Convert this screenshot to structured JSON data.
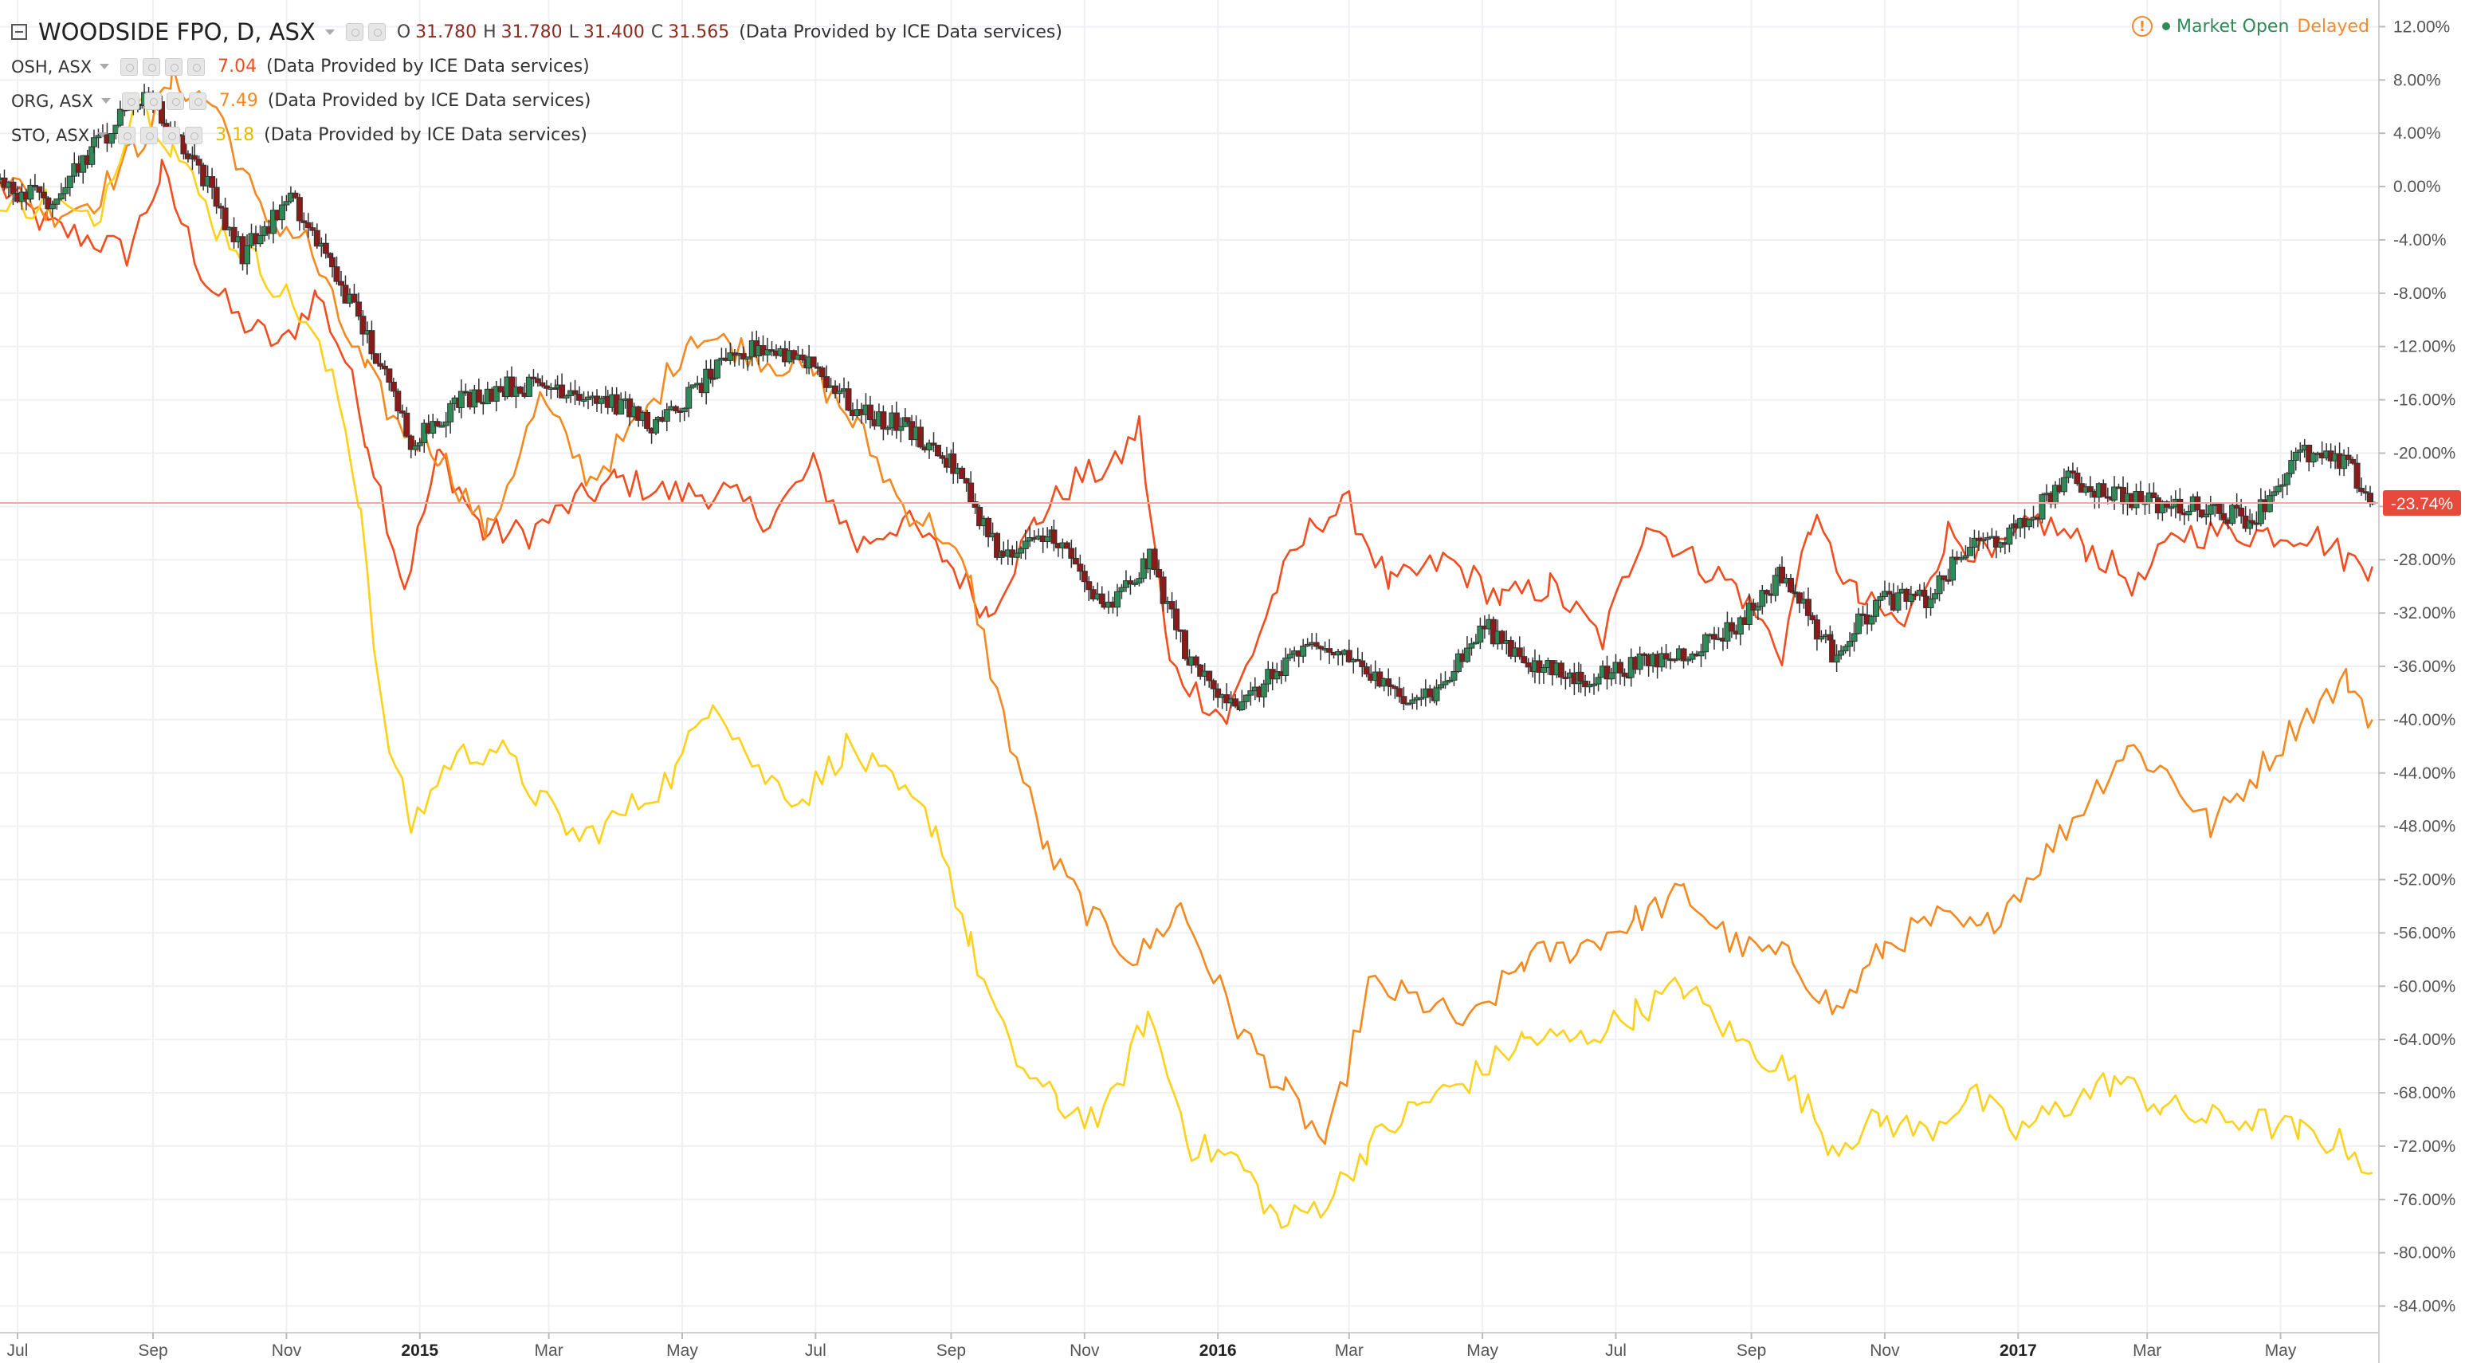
{
  "main": {
    "symbol": "WOODSIDE FPO, D, ASX",
    "open_label": "O",
    "open": "31.780",
    "high_label": "H",
    "high": "31.780",
    "low_label": "L",
    "low": "31.400",
    "close_label": "C",
    "close": "31.565",
    "provider": "(Data Provided by ICE Data services)"
  },
  "compare": [
    {
      "symbol": "OSH, ASX",
      "value": "7.04",
      "provider": "(Data Provided by ICE Data services)"
    },
    {
      "symbol": "ORG, ASX",
      "value": "7.49",
      "provider": "(Data Provided by ICE Data services)"
    },
    {
      "symbol": "STO, ASX",
      "value": "3.18",
      "provider": "(Data Provided by ICE Data services)"
    }
  ],
  "status": {
    "market": "Market Open",
    "delay": "Delayed"
  },
  "colors": {
    "osh": "#f24d1f",
    "org": "#f5891f",
    "sto": "#ffd11a",
    "candle_up": "#2e8b57",
    "candle_down": "#8b1a1a",
    "badge": "#e8493a",
    "up_text": "#2e8b57",
    "delayed": "#f28a2e"
  },
  "chart_data": {
    "type": "line",
    "y_axis_unit": "percent",
    "ylim": [
      -86,
      14
    ],
    "y_ticks": [
      "12.00%",
      "8.00%",
      "4.00%",
      "0.00%",
      "-4.00%",
      "-8.00%",
      "-12.00%",
      "-16.00%",
      "-20.00%",
      "-24.00%",
      "-28.00%",
      "-32.00%",
      "-36.00%",
      "-40.00%",
      "-44.00%",
      "-48.00%",
      "-52.00%",
      "-56.00%",
      "-60.00%",
      "-64.00%",
      "-68.00%",
      "-72.00%",
      "-76.00%",
      "-80.00%",
      "-84.00%"
    ],
    "y_tick_values": [
      12,
      8,
      4,
      0,
      -4,
      -8,
      -12,
      -16,
      -20,
      -24,
      -28,
      -32,
      -36,
      -40,
      -44,
      -48,
      -52,
      -56,
      -60,
      -64,
      -68,
      -72,
      -76,
      -80,
      -84
    ],
    "x_ticks": [
      "Jul",
      "Sep",
      "Nov",
      "2015",
      "Mar",
      "May",
      "Jul",
      "Sep",
      "Nov",
      "2016",
      "Mar",
      "May",
      "Jul",
      "Sep",
      "Nov",
      "2017",
      "Mar",
      "May"
    ],
    "x_tick_dates": [
      "2014-07-01",
      "2014-09-01",
      "2014-11-01",
      "2015-01-01",
      "2015-03-01",
      "2015-05-01",
      "2015-07-01",
      "2015-09-01",
      "2015-11-01",
      "2016-01-01",
      "2016-03-01",
      "2016-05-01",
      "2016-07-01",
      "2016-09-01",
      "2016-11-01",
      "2017-01-01",
      "2017-03-01",
      "2017-05-01"
    ],
    "x_bold": [
      "2015",
      "2016",
      "2017"
    ],
    "xlim": [
      "2014-06-23",
      "2017-06-15"
    ],
    "grid": true,
    "last_value_label": "-23.74%",
    "last_value": -23.74,
    "series": [
      {
        "name": "WOODSIDE FPO, D, ASX",
        "style": "candlestick",
        "color_key": "candle_up",
        "dates": [
          "2014-06-23",
          "2014-07-15",
          "2014-08-05",
          "2014-08-28",
          "2014-09-20",
          "2014-10-12",
          "2014-11-03",
          "2014-11-22",
          "2014-12-10",
          "2014-12-28",
          "2015-01-20",
          "2015-02-10",
          "2015-03-05",
          "2015-03-28",
          "2015-04-20",
          "2015-05-15",
          "2015-06-05",
          "2015-06-28",
          "2015-07-20",
          "2015-08-12",
          "2015-09-02",
          "2015-09-25",
          "2015-10-18",
          "2015-11-10",
          "2015-12-01",
          "2015-12-20",
          "2016-01-12",
          "2016-02-05",
          "2016-02-28",
          "2016-03-20",
          "2016-04-10",
          "2016-05-02",
          "2016-05-25",
          "2016-06-15",
          "2016-07-08",
          "2016-08-01",
          "2016-08-25",
          "2016-09-15",
          "2016-10-08",
          "2016-10-30",
          "2016-11-20",
          "2016-12-10",
          "2016-12-31",
          "2017-01-22",
          "2017-02-14",
          "2017-03-08",
          "2017-03-28",
          "2017-04-18",
          "2017-05-10",
          "2017-06-01",
          "2017-06-12"
        ],
        "values": [
          0,
          -1,
          3,
          7,
          2,
          -5,
          -1,
          -6,
          -12,
          -19,
          -16,
          -15,
          -15,
          -16,
          -18,
          -14,
          -12,
          -13,
          -17,
          -18,
          -21,
          -28,
          -26,
          -32,
          -28,
          -36,
          -39,
          -35,
          -35,
          -38,
          -38,
          -33,
          -36,
          -37,
          -36,
          -35,
          -33,
          -29,
          -35,
          -31,
          -31,
          -27,
          -26,
          -22,
          -23,
          -24,
          -24,
          -25,
          -20,
          -21,
          -23.74
        ]
      },
      {
        "name": "OSH, ASX",
        "style": "line",
        "color_key": "osh",
        "dates": [
          "2014-06-23",
          "2014-07-15",
          "2014-08-05",
          "2014-08-20",
          "2014-09-05",
          "2014-09-25",
          "2014-10-10",
          "2014-10-30",
          "2014-11-15",
          "2014-11-28",
          "2014-12-08",
          "2014-12-25",
          "2015-01-10",
          "2015-01-30",
          "2015-02-20",
          "2015-03-10",
          "2015-04-01",
          "2015-04-25",
          "2015-05-20",
          "2015-06-10",
          "2015-06-30",
          "2015-07-20",
          "2015-08-10",
          "2015-08-30",
          "2015-09-18",
          "2015-10-10",
          "2015-10-28",
          "2015-11-15",
          "2015-11-26",
          "2015-12-10",
          "2016-01-05",
          "2016-01-28",
          "2016-02-15",
          "2016-03-01",
          "2016-03-20",
          "2016-04-15",
          "2016-05-10",
          "2016-06-01",
          "2016-06-25",
          "2016-07-15",
          "2016-08-05",
          "2016-08-25",
          "2016-09-15",
          "2016-09-28",
          "2016-10-20",
          "2016-11-10",
          "2016-11-30",
          "2016-12-20",
          "2017-01-10",
          "2017-02-01",
          "2017-02-25",
          "2017-03-15",
          "2017-04-05",
          "2017-04-25",
          "2017-05-15",
          "2017-06-01",
          "2017-06-12"
        ],
        "values": [
          0,
          -3,
          -4,
          -5,
          1,
          -7,
          -10,
          -12,
          -8,
          -13,
          -19,
          -30,
          -20,
          -26,
          -26,
          -24,
          -22,
          -23,
          -23,
          -25,
          -21,
          -27,
          -25,
          -28,
          -32,
          -25,
          -22,
          -21,
          -18,
          -36,
          -40,
          -30,
          -25,
          -24,
          -30,
          -28,
          -31,
          -30,
          -34,
          -25,
          -28,
          -30,
          -35,
          -25,
          -31,
          -33,
          -26,
          -28,
          -25,
          -27,
          -30,
          -26,
          -26,
          -26,
          -26,
          -28,
          -28.5
        ]
      },
      {
        "name": "ORG, ASX",
        "style": "line",
        "color_key": "org",
        "dates": [
          "2014-06-23",
          "2014-07-15",
          "2014-08-05",
          "2014-08-25",
          "2014-09-10",
          "2014-09-30",
          "2014-10-20",
          "2014-11-10",
          "2014-11-25",
          "2014-12-08",
          "2014-12-22",
          "2015-01-10",
          "2015-02-01",
          "2015-02-25",
          "2015-03-20",
          "2015-04-15",
          "2015-05-05",
          "2015-05-25",
          "2015-06-10",
          "2015-06-30",
          "2015-07-20",
          "2015-08-10",
          "2015-08-28",
          "2015-09-10",
          "2015-09-25",
          "2015-10-15",
          "2015-11-05",
          "2015-11-25",
          "2015-12-15",
          "2016-01-10",
          "2016-02-01",
          "2016-02-20",
          "2016-03-10",
          "2016-04-01",
          "2016-04-25",
          "2016-05-20",
          "2016-06-15",
          "2016-07-10",
          "2016-08-01",
          "2016-08-25",
          "2016-09-20",
          "2016-10-10",
          "2016-11-01",
          "2016-11-25",
          "2016-12-15",
          "2017-01-05",
          "2017-01-28",
          "2017-02-20",
          "2017-03-10",
          "2017-03-30",
          "2017-04-20",
          "2017-05-10",
          "2017-06-01",
          "2017-06-12"
        ],
        "values": [
          1,
          -2,
          -1,
          3,
          8,
          6,
          -2,
          -4,
          -10,
          -14,
          -18,
          -20,
          -26,
          -16,
          -22,
          -17,
          -11,
          -12,
          -13,
          -14,
          -18,
          -24,
          -26,
          -30,
          -40,
          -50,
          -55,
          -58,
          -54,
          -63,
          -68,
          -72,
          -60,
          -61,
          -63,
          -58,
          -57,
          -55,
          -53,
          -57,
          -58,
          -62,
          -57,
          -55,
          -56,
          -52,
          -47,
          -42,
          -44,
          -48,
          -44,
          -40,
          -37,
          -40
        ]
      },
      {
        "name": "STO, ASX",
        "style": "line",
        "color_key": "sto",
        "dates": [
          "2014-06-23",
          "2014-07-15",
          "2014-08-05",
          "2014-08-25",
          "2014-09-10",
          "2014-09-30",
          "2014-10-20",
          "2014-11-10",
          "2014-11-25",
          "2014-12-05",
          "2014-12-15",
          "2014-12-28",
          "2015-01-15",
          "2015-02-05",
          "2015-02-25",
          "2015-03-15",
          "2015-04-05",
          "2015-04-28",
          "2015-05-15",
          "2015-06-05",
          "2015-06-25",
          "2015-07-15",
          "2015-08-05",
          "2015-08-25",
          "2015-09-10",
          "2015-09-28",
          "2015-10-20",
          "2015-11-10",
          "2015-11-30",
          "2015-12-20",
          "2016-01-10",
          "2016-01-30",
          "2016-02-20",
          "2016-03-10",
          "2016-04-01",
          "2016-04-25",
          "2016-05-20",
          "2016-06-15",
          "2016-07-10",
          "2016-08-01",
          "2016-08-25",
          "2016-09-15",
          "2016-10-08",
          "2016-10-30",
          "2016-11-20",
          "2016-12-10",
          "2016-12-31",
          "2017-01-22",
          "2017-02-14",
          "2017-03-08",
          "2017-03-28",
          "2017-04-18",
          "2017-05-10",
          "2017-06-01",
          "2017-06-12"
        ],
        "values": [
          -2,
          -1,
          -3,
          7,
          3,
          -3,
          -6,
          -10,
          -16,
          -24,
          -40,
          -48,
          -43,
          -42,
          -46,
          -49,
          -47,
          -44,
          -38,
          -44,
          -46,
          -42,
          -45,
          -48,
          -57,
          -65,
          -69,
          -70,
          -62,
          -72,
          -73,
          -78,
          -76,
          -72,
          -69,
          -67,
          -64,
          -64,
          -62,
          -60,
          -64,
          -66,
          -72,
          -70,
          -71,
          -68,
          -71,
          -69,
          -67,
          -69,
          -70,
          -70,
          -71,
          -72,
          -74
        ]
      }
    ]
  }
}
